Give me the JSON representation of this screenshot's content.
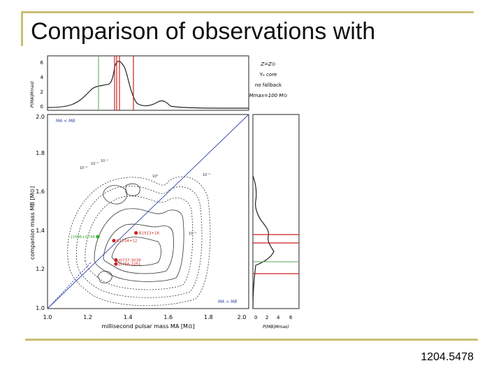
{
  "slide": {
    "title": "Comparison of observations with",
    "reference": "1204.5478",
    "frame_color": "#c8bf73"
  },
  "figure": {
    "legend_lines": [
      "Z=Z⊙",
      "Yₑ core",
      "no fallback",
      "Mmax=100 M⊙"
    ],
    "region_labels": [
      "MA < MB",
      "MA > MB"
    ],
    "x_axis": {
      "label": "millisecond pulsar mass MA [M⊙]",
      "ticks": [
        "1.0",
        "1.2",
        "1.4",
        "1.6",
        "1.8",
        "2.0"
      ],
      "range": [
        1.0,
        2.0
      ]
    },
    "y_axis": {
      "label": "companion mass MB [M⊙]",
      "ticks": [
        "1.0",
        "1.2",
        "1.4",
        "1.6",
        "1.8",
        "2.0"
      ],
      "range": [
        1.0,
        2.0
      ]
    },
    "top_panel": {
      "ylabel": "P(MA|Mmax)",
      "ticks": [
        "0",
        "2",
        "4",
        "6"
      ]
    },
    "right_panel": {
      "xlabel": "P(MB|Mmax)",
      "ticks": [
        "0",
        "2",
        "4",
        "6"
      ]
    },
    "contour_labels": [
      "10⁻³",
      "10⁻²",
      "10⁻¹",
      "10⁰",
      "10⁻¹",
      "10⁻²"
    ],
    "systems": [
      {
        "name": "B1913+16",
        "ma": 1.44,
        "mb": 1.39,
        "color": "#cc2222"
      },
      {
        "name": "J1756-2251",
        "ma": 1.34,
        "mb": 1.23,
        "color": "#cc2222"
      },
      {
        "name": "J0737-3039",
        "ma": 1.34,
        "mb": 1.25,
        "color": "#cc2222"
      },
      {
        "name": "B1534+12",
        "ma": 1.33,
        "mb": 1.35,
        "color": "#cc2222"
      },
      {
        "name": "J1906+0746",
        "ma": 1.25,
        "mb": 1.37,
        "color": "#33aa33"
      }
    ]
  }
}
